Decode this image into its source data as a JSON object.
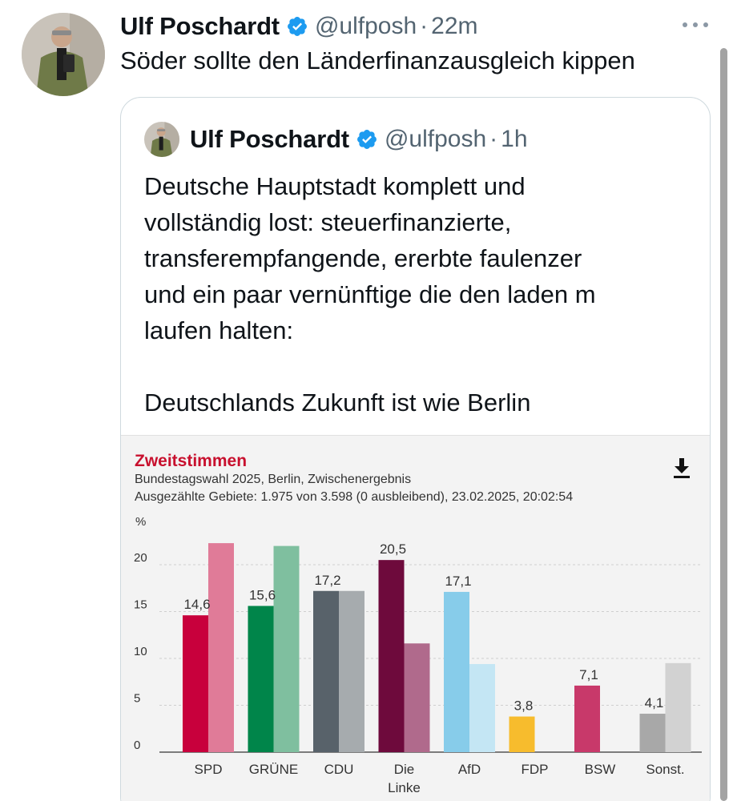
{
  "main_tweet": {
    "author_name": "Ulf Poschardt",
    "handle": "@ulfposh",
    "separator": "·",
    "time": "22m",
    "text": "Söder sollte den Länderfinanzausgleich kippen"
  },
  "quoted_tweet": {
    "author_name": "Ulf Poschardt",
    "handle": "@ulfposh",
    "separator": "·",
    "time": "1h",
    "text_lines": [
      "Deutsche Hauptstadt komplett und",
      "vollständig lost: steuerfinanzierte,",
      "transferempfangende, ererbte faulenzer",
      "und ein paar vernünftige die den laden m",
      "laufen halten:",
      "",
      "Deutschlands Zukunft ist wie Berlin"
    ]
  },
  "colors": {
    "verified_blue": "#1d9bf0",
    "title_red": "#c8102e"
  },
  "chart_data": {
    "type": "bar",
    "title": "Zweitstimmen",
    "subtitle_1": "Bundestagswahl 2025, Berlin, Zwischenergebnis",
    "subtitle_2": "Ausgezählte Gebiete: 1.975 von 3.598 (0 ausbleibend), 23.02.2025, 20:02:54",
    "ylabel": "%",
    "ylim": [
      0,
      23
    ],
    "yticks": [
      "0",
      "5",
      "10",
      "15",
      "20"
    ],
    "grid": true,
    "categories": [
      "SPD",
      "GRÜNE",
      "CDU",
      "Die Linke",
      "AfD",
      "FDP",
      "BSW",
      "Sonst."
    ],
    "category_labels": [
      [
        "SPD"
      ],
      [
        "GRÜNE"
      ],
      [
        "CDU"
      ],
      [
        "Die",
        "Linke"
      ],
      [
        "AfD"
      ],
      [
        "FDP"
      ],
      [
        "BSW"
      ],
      [
        "Sonst."
      ]
    ],
    "series": [
      {
        "role": "current",
        "values": [
          14.6,
          15.6,
          17.2,
          20.5,
          17.1,
          3.8,
          7.1,
          4.1
        ],
        "labels": [
          "14,6",
          "15,6",
          "17,2",
          "20,5",
          "17,1",
          "3,8",
          "7,1",
          "4,1"
        ],
        "colors": [
          "#c8003c",
          "#00854a",
          "#58626a",
          "#6e0a3c",
          "#87ccea",
          "#f7bc2d",
          "#c8396a",
          "#a8a8a8"
        ]
      },
      {
        "role": "previous",
        "values": [
          22.3,
          22.0,
          17.2,
          11.6,
          9.4,
          null,
          null,
          9.5
        ],
        "colors": [
          "#e07b98",
          "#7fbf9f",
          "#a6abae",
          "#b06a8c",
          "#c4e6f4",
          "#fbd98e",
          null,
          "#d2d2d2"
        ]
      }
    ]
  }
}
